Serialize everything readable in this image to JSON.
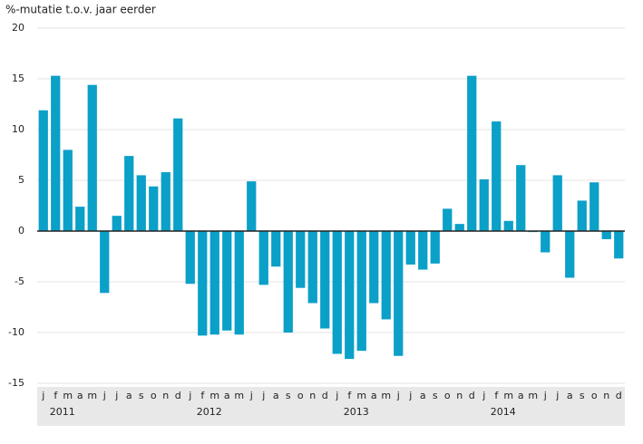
{
  "chart_data": {
    "type": "bar",
    "y_label": "%-mutatie t.o.v. jaar eerder",
    "categories": [
      "j",
      "f",
      "m",
      "a",
      "m",
      "j",
      "j",
      "a",
      "s",
      "o",
      "n",
      "d",
      "j",
      "f",
      "m",
      "a",
      "m",
      "j",
      "j",
      "a",
      "s",
      "o",
      "n",
      "d",
      "j",
      "f",
      "m",
      "a",
      "m",
      "j",
      "j",
      "a",
      "s",
      "o",
      "n",
      "d",
      "j",
      "f",
      "m",
      "a",
      "m",
      "j",
      "j",
      "a",
      "s",
      "o",
      "n",
      "d"
    ],
    "years": [
      "2011",
      "2012",
      "2013",
      "2014"
    ],
    "values": [
      11.9,
      15.3,
      8.0,
      2.4,
      14.4,
      -6.1,
      1.5,
      7.4,
      5.5,
      4.4,
      5.8,
      11.1,
      -5.2,
      -10.3,
      -10.2,
      -9.8,
      -10.2,
      4.9,
      -5.3,
      -3.5,
      -10.0,
      -5.6,
      -7.1,
      -9.6,
      -12.1,
      -12.6,
      -11.8,
      -7.1,
      -8.7,
      -12.3,
      -3.3,
      -3.8,
      -3.2,
      2.2,
      0.7,
      15.3,
      5.1,
      10.8,
      1.0,
      6.5,
      -0.1,
      -2.1,
      5.5,
      -4.6,
      3.0,
      4.8,
      -0.8,
      -2.7
    ],
    "color": "#0aa0c8",
    "ylim": [
      -15,
      20
    ],
    "yticks": [
      20,
      15,
      10,
      5,
      0,
      -5,
      -10,
      -15
    ],
    "grid": true
  }
}
